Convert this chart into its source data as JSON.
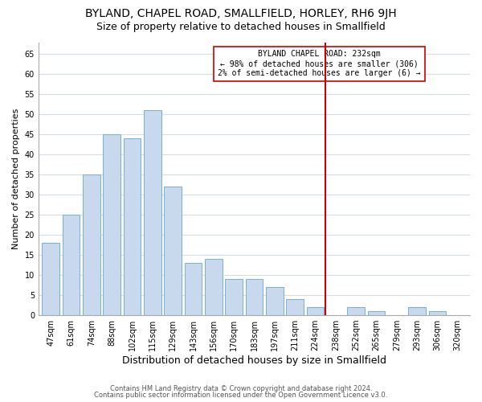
{
  "title": "BYLAND, CHAPEL ROAD, SMALLFIELD, HORLEY, RH6 9JH",
  "subtitle": "Size of property relative to detached houses in Smallfield",
  "xlabel": "Distribution of detached houses by size in Smallfield",
  "ylabel": "Number of detached properties",
  "bar_labels": [
    "47sqm",
    "61sqm",
    "74sqm",
    "88sqm",
    "102sqm",
    "115sqm",
    "129sqm",
    "143sqm",
    "156sqm",
    "170sqm",
    "183sqm",
    "197sqm",
    "211sqm",
    "224sqm",
    "238sqm",
    "252sqm",
    "265sqm",
    "279sqm",
    "293sqm",
    "306sqm",
    "320sqm"
  ],
  "bar_values": [
    18,
    25,
    35,
    45,
    44,
    51,
    32,
    13,
    14,
    9,
    9,
    7,
    4,
    2,
    0,
    2,
    1,
    0,
    2,
    1,
    0
  ],
  "bar_color": "#c8d9ed",
  "bar_edge_color": "#7aafd4",
  "ylim": [
    0,
    68
  ],
  "yticks": [
    0,
    5,
    10,
    15,
    20,
    25,
    30,
    35,
    40,
    45,
    50,
    55,
    60,
    65
  ],
  "vline_color": "#cc0000",
  "vline_x_index": 14,
  "annotation_title": "BYLAND CHAPEL ROAD: 232sqm",
  "annotation_line1": "← 98% of detached houses are smaller (306)",
  "annotation_line2": "2% of semi-detached houses are larger (6) →",
  "annotation_box_color": "#ffffff",
  "annotation_box_edge": "#cc0000",
  "footer1": "Contains HM Land Registry data © Crown copyright and database right 2024.",
  "footer2": "Contains public sector information licensed under the Open Government Licence v3.0.",
  "background_color": "#ffffff",
  "grid_color": "#d4dce8",
  "title_fontsize": 10,
  "subtitle_fontsize": 9,
  "xlabel_fontsize": 9,
  "ylabel_fontsize": 8,
  "tick_fontsize": 7,
  "footer_fontsize": 6,
  "annot_fontsize": 7
}
